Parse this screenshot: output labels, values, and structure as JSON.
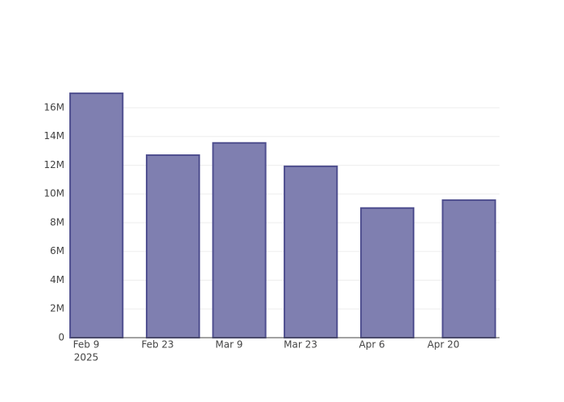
{
  "chart_data": {
    "type": "bar",
    "x": [
      "2025-02-11",
      "2025-02-26",
      "2025-03-11",
      "2025-03-25",
      "2025-04-09",
      "2025-04-25"
    ],
    "values": [
      17.0,
      12.7,
      13.55,
      11.92,
      9.02,
      9.57
    ],
    "color": "#7f7fb0",
    "edge_color": "#4f4f8f",
    "xlim": [
      "2025-02-06",
      "2025-05-01"
    ],
    "xticks": [
      {
        "value": "2025-02-09",
        "label": "Feb 9"
      },
      {
        "value": "2025-02-23",
        "label": "Feb 23"
      },
      {
        "value": "2025-03-09",
        "label": "Mar 9"
      },
      {
        "value": "2025-03-23",
        "label": "Mar 23"
      },
      {
        "value": "2025-04-06",
        "label": "Apr 6"
      },
      {
        "value": "2025-04-20",
        "label": "Apr 20"
      }
    ],
    "x_year_label": "2025",
    "ylim": [
      0,
      17.9
    ],
    "yticks": [
      0,
      {
        "value": 2,
        "label": "2M"
      },
      {
        "value": 4,
        "label": "4M"
      },
      {
        "value": 6,
        "label": "6M"
      },
      {
        "value": 8,
        "label": "8M"
      },
      {
        "value": 10,
        "label": "10M"
      },
      {
        "value": 12,
        "label": "12M"
      },
      {
        "value": 14,
        "label": "14M"
      },
      {
        "value": 16,
        "label": "16M"
      }
    ],
    "grid": true
  }
}
